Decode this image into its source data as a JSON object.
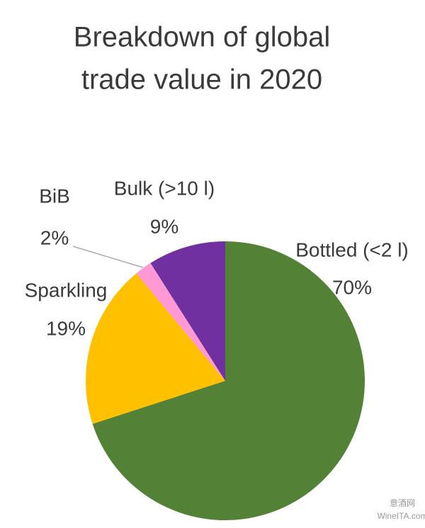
{
  "chart_data": {
    "type": "pie",
    "title": [
      "Breakdown of global",
      "trade value in 2020"
    ],
    "categories": [
      "Bottled (<2 l)",
      "Sparkling",
      "BiB",
      "Bulk (>10 l)"
    ],
    "values": [
      70,
      19,
      2,
      9
    ],
    "value_labels": [
      "70%",
      "19%",
      "2%",
      "9%"
    ],
    "colors": [
      "#538135",
      "#ffc000",
      "#ff99d6",
      "#7030a0"
    ],
    "watermark": [
      "意酒网",
      "WineITA.com"
    ]
  }
}
